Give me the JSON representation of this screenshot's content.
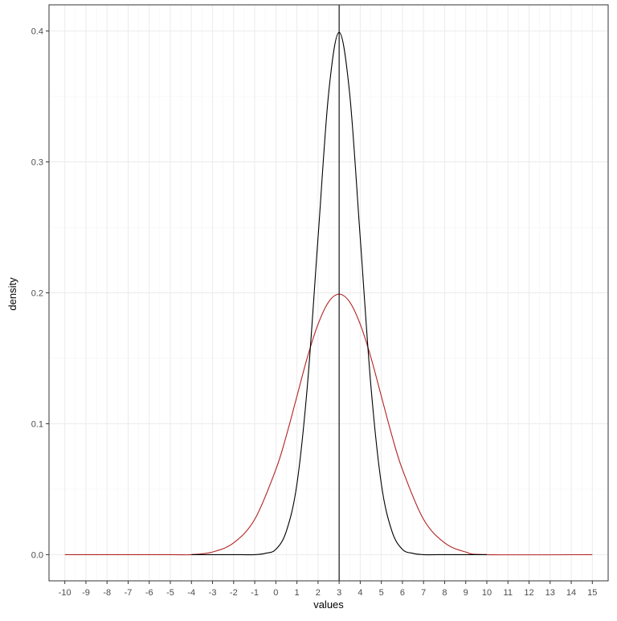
{
  "chart_data": {
    "type": "line",
    "title": "",
    "xlabel": "values",
    "ylabel": "density",
    "xlim": [
      -10.75,
      15.75
    ],
    "ylim": [
      -0.02,
      0.42
    ],
    "x_ticks": [
      -10,
      -9,
      -8,
      -7,
      -6,
      -5,
      -4,
      -3,
      -2,
      -1,
      0,
      1,
      2,
      3,
      4,
      5,
      6,
      7,
      8,
      9,
      10,
      11,
      12,
      13,
      14,
      15
    ],
    "y_ticks": [
      0.0,
      0.1,
      0.2,
      0.3,
      0.4
    ],
    "y_tick_labels": [
      "0.0",
      "0.1",
      "0.2",
      "0.3",
      "0.4"
    ],
    "grid": true,
    "vline": {
      "x": 3,
      "color": "#000000"
    },
    "series": [
      {
        "color": "#000000",
        "x": [
          -4,
          -3,
          -2,
          -1,
          -0.5,
          0,
          0.5,
          1,
          1.5,
          2,
          2.5,
          3,
          3.5,
          4,
          4.5,
          5,
          5.5,
          6,
          6.5,
          7,
          8,
          9,
          10
        ],
        "y": [
          0.0,
          0.0,
          0.0,
          0.0,
          0.001,
          0.004,
          0.018,
          0.054,
          0.13,
          0.242,
          0.352,
          0.399,
          0.352,
          0.242,
          0.13,
          0.054,
          0.018,
          0.004,
          0.001,
          0.0,
          0.0,
          0.0,
          0.0
        ]
      },
      {
        "color": "#b22222",
        "x": [
          -10,
          -5,
          -4,
          -3,
          -2,
          -1,
          0,
          0.5,
          1,
          1.5,
          2,
          2.5,
          3,
          3.5,
          4,
          4.5,
          5,
          5.5,
          6,
          7,
          8,
          9,
          10,
          15
        ],
        "y": [
          0.0,
          0.0,
          0.0,
          0.002,
          0.009,
          0.027,
          0.065,
          0.091,
          0.121,
          0.151,
          0.176,
          0.193,
          0.199,
          0.193,
          0.176,
          0.151,
          0.121,
          0.091,
          0.065,
          0.027,
          0.009,
          0.002,
          0.0,
          0.0
        ]
      }
    ]
  }
}
